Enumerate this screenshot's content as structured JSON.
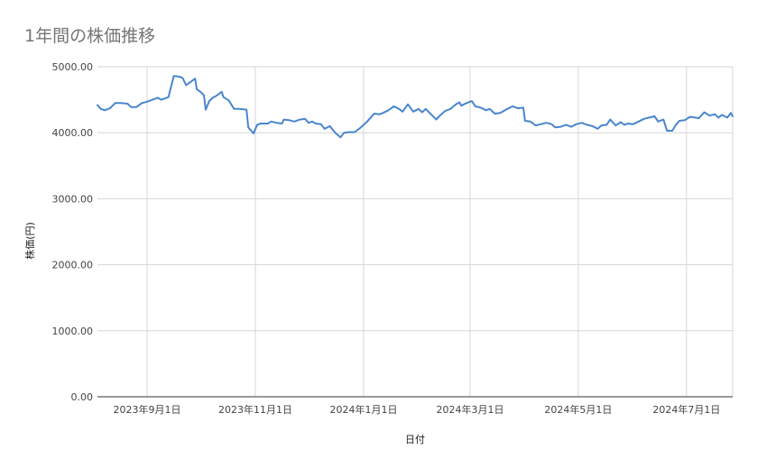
{
  "chart_data": {
    "type": "line",
    "title": "1年間の株価推移",
    "xlabel": "日付",
    "ylabel": "株価(円)",
    "ylim": [
      0,
      5000
    ],
    "yticks": [
      "0.00",
      "1000.00",
      "2000.00",
      "3000.00",
      "4000.00",
      "5000.00"
    ],
    "xlim": [
      "2023-08-04",
      "2024-07-27"
    ],
    "xticks": [
      {
        "date": "2023-09-01",
        "label": "2023年9月1日"
      },
      {
        "date": "2023-11-01",
        "label": "2023年11月1日"
      },
      {
        "date": "2024-01-01",
        "label": "2024年1月1日"
      },
      {
        "date": "2024-03-01",
        "label": "2024年3月1日"
      },
      {
        "date": "2024-05-01",
        "label": "2024年5月1日"
      },
      {
        "date": "2024-07-01",
        "label": "2024年7月1日"
      }
    ],
    "grid": true,
    "color": "#4a86cd",
    "series": [
      {
        "points": [
          [
            "2023-08-04",
            4420
          ],
          [
            "2023-08-06",
            4360
          ],
          [
            "2023-08-08",
            4340
          ],
          [
            "2023-08-11",
            4370
          ],
          [
            "2023-08-14",
            4450
          ],
          [
            "2023-08-17",
            4450
          ],
          [
            "2023-08-21",
            4440
          ],
          [
            "2023-08-23",
            4390
          ],
          [
            "2023-08-26",
            4390
          ],
          [
            "2023-08-29",
            4450
          ],
          [
            "2023-09-01",
            4470
          ],
          [
            "2023-09-04",
            4500
          ],
          [
            "2023-09-07",
            4530
          ],
          [
            "2023-09-09",
            4500
          ],
          [
            "2023-09-13",
            4540
          ],
          [
            "2023-09-16",
            4860
          ],
          [
            "2023-09-19",
            4850
          ],
          [
            "2023-09-21",
            4830
          ],
          [
            "2023-09-23",
            4720
          ],
          [
            "2023-09-25",
            4760
          ],
          [
            "2023-09-28",
            4820
          ],
          [
            "2023-09-29",
            4660
          ],
          [
            "2023-10-01",
            4620
          ],
          [
            "2023-10-03",
            4570
          ],
          [
            "2023-10-04",
            4350
          ],
          [
            "2023-10-06",
            4480
          ],
          [
            "2023-10-08",
            4530
          ],
          [
            "2023-10-10",
            4560
          ],
          [
            "2023-10-12",
            4600
          ],
          [
            "2023-10-13",
            4620
          ],
          [
            "2023-10-14",
            4540
          ],
          [
            "2023-10-17",
            4490
          ],
          [
            "2023-10-20",
            4360
          ],
          [
            "2023-10-23",
            4360
          ],
          [
            "2023-10-27",
            4350
          ],
          [
            "2023-10-28",
            4080
          ],
          [
            "2023-10-31",
            3990
          ],
          [
            "2023-11-02",
            4120
          ],
          [
            "2023-11-04",
            4140
          ],
          [
            "2023-11-08",
            4140
          ],
          [
            "2023-11-10",
            4170
          ],
          [
            "2023-11-13",
            4150
          ],
          [
            "2023-11-16",
            4140
          ],
          [
            "2023-11-17",
            4200
          ],
          [
            "2023-11-20",
            4190
          ],
          [
            "2023-11-23",
            4170
          ],
          [
            "2023-11-26",
            4200
          ],
          [
            "2023-11-29",
            4210
          ],
          [
            "2023-12-01",
            4150
          ],
          [
            "2023-12-03",
            4170
          ],
          [
            "2023-12-05",
            4140
          ],
          [
            "2023-12-08",
            4130
          ],
          [
            "2023-12-10",
            4060
          ],
          [
            "2023-12-13",
            4100
          ],
          [
            "2023-12-16",
            4000
          ],
          [
            "2023-12-19",
            3930
          ],
          [
            "2023-12-21",
            4000
          ],
          [
            "2023-12-24",
            4010
          ],
          [
            "2023-12-27",
            4010
          ],
          [
            "2023-12-30",
            4070
          ],
          [
            "2024-01-03",
            4170
          ],
          [
            "2024-01-07",
            4290
          ],
          [
            "2024-01-10",
            4280
          ],
          [
            "2024-01-12",
            4300
          ],
          [
            "2024-01-15",
            4340
          ],
          [
            "2024-01-18",
            4400
          ],
          [
            "2024-01-21",
            4360
          ],
          [
            "2024-01-23",
            4320
          ],
          [
            "2024-01-26",
            4430
          ],
          [
            "2024-01-29",
            4320
          ],
          [
            "2024-02-01",
            4360
          ],
          [
            "2024-02-03",
            4310
          ],
          [
            "2024-02-05",
            4360
          ],
          [
            "2024-02-08",
            4280
          ],
          [
            "2024-02-11",
            4200
          ],
          [
            "2024-02-13",
            4260
          ],
          [
            "2024-02-16",
            4330
          ],
          [
            "2024-02-19",
            4360
          ],
          [
            "2024-02-22",
            4430
          ],
          [
            "2024-02-24",
            4460
          ],
          [
            "2024-02-25",
            4410
          ],
          [
            "2024-02-28",
            4450
          ],
          [
            "2024-03-02",
            4480
          ],
          [
            "2024-03-04",
            4400
          ],
          [
            "2024-03-07",
            4380
          ],
          [
            "2024-03-10",
            4340
          ],
          [
            "2024-03-12",
            4360
          ],
          [
            "2024-03-15",
            4290
          ],
          [
            "2024-03-18",
            4300
          ],
          [
            "2024-03-22",
            4360
          ],
          [
            "2024-03-25",
            4400
          ],
          [
            "2024-03-28",
            4370
          ],
          [
            "2024-03-31",
            4380
          ],
          [
            "2024-04-01",
            4180
          ],
          [
            "2024-04-04",
            4170
          ],
          [
            "2024-04-07",
            4110
          ],
          [
            "2024-04-10",
            4130
          ],
          [
            "2024-04-13",
            4150
          ],
          [
            "2024-04-16",
            4130
          ],
          [
            "2024-04-18",
            4080
          ],
          [
            "2024-04-21",
            4090
          ],
          [
            "2024-04-24",
            4120
          ],
          [
            "2024-04-27",
            4090
          ],
          [
            "2024-04-30",
            4130
          ],
          [
            "2024-05-03",
            4150
          ],
          [
            "2024-05-06",
            4120
          ],
          [
            "2024-05-09",
            4100
          ],
          [
            "2024-05-12",
            4060
          ],
          [
            "2024-05-14",
            4110
          ],
          [
            "2024-05-17",
            4120
          ],
          [
            "2024-05-19",
            4200
          ],
          [
            "2024-05-22",
            4110
          ],
          [
            "2024-05-25",
            4160
          ],
          [
            "2024-05-27",
            4120
          ],
          [
            "2024-05-29",
            4140
          ],
          [
            "2024-06-01",
            4130
          ],
          [
            "2024-06-04",
            4170
          ],
          [
            "2024-06-07",
            4210
          ],
          [
            "2024-06-10",
            4230
          ],
          [
            "2024-06-13",
            4250
          ],
          [
            "2024-06-15",
            4170
          ],
          [
            "2024-06-18",
            4200
          ],
          [
            "2024-06-20",
            4030
          ],
          [
            "2024-06-23",
            4030
          ],
          [
            "2024-06-25",
            4120
          ],
          [
            "2024-06-27",
            4180
          ],
          [
            "2024-06-30",
            4190
          ],
          [
            "2024-07-03",
            4240
          ],
          [
            "2024-07-06",
            4230
          ],
          [
            "2024-07-08",
            4220
          ],
          [
            "2024-07-11",
            4310
          ],
          [
            "2024-07-14",
            4260
          ],
          [
            "2024-07-17",
            4280
          ],
          [
            "2024-07-19",
            4230
          ],
          [
            "2024-07-21",
            4270
          ],
          [
            "2024-07-24",
            4230
          ],
          [
            "2024-07-26",
            4300
          ],
          [
            "2024-07-27",
            4250
          ]
        ]
      }
    ]
  }
}
